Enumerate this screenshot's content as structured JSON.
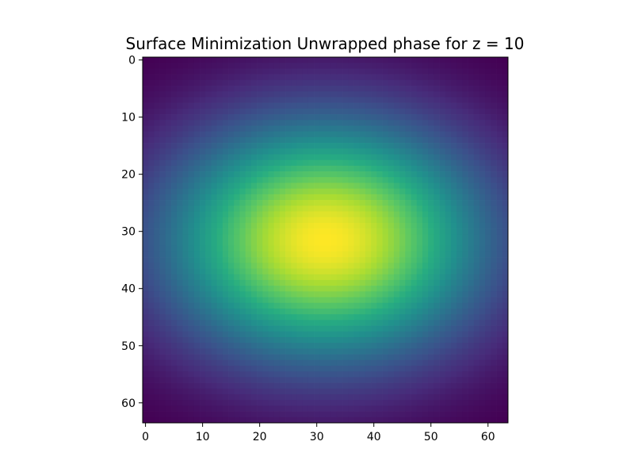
{
  "chart_data": {
    "type": "heatmap",
    "title": "Surface Minimization Unwrapped phase for z = 10",
    "xlabel": "",
    "ylabel": "",
    "grid_size": [
      64,
      64
    ],
    "xlim": [
      -0.5,
      63.5
    ],
    "ylim": [
      63.5,
      -0.5
    ],
    "x_ticks": [
      0,
      10,
      20,
      30,
      40,
      50,
      60
    ],
    "y_ticks": [
      0,
      10,
      20,
      30,
      40,
      50,
      60
    ],
    "colormap": "viridis",
    "surface": {
      "form": "gaussian",
      "center": [
        31.5,
        31.5
      ],
      "sigma_x": 28,
      "sigma_y": 21
    },
    "grid": false,
    "colorbar": false
  }
}
